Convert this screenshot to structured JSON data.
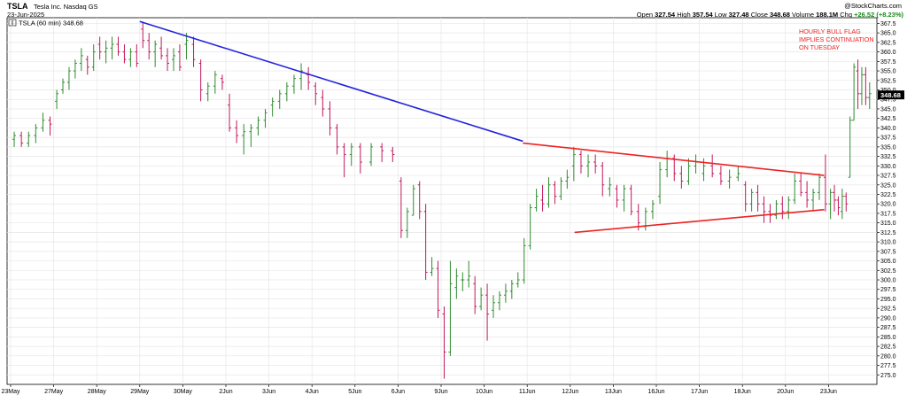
{
  "header": {
    "ticker": "TSLA",
    "company": "Tesla Inc.  Nasdaq GS",
    "date": "23-Jun-2025",
    "credit": "@StockCharts.com",
    "ohlc": {
      "open_label": "Open",
      "open": "327.54",
      "high_label": "High",
      "high": "357.54",
      "low_label": "Low",
      "low": "327.48",
      "close_label": "Close",
      "close": "348.68",
      "volume_label": "Volume",
      "volume": "188.1M",
      "chg_label": "Chg",
      "chg": "+26.52 (+8.23%)"
    }
  },
  "chart_data": {
    "type": "ohlc",
    "legend": "TSLA (60 min) 348.68",
    "last_price_tag": "348.68",
    "ylim": [
      272.5,
      369
    ],
    "yticks": [
      "275.0",
      "277.5",
      "280.0",
      "282.5",
      "285.0",
      "287.5",
      "290.0",
      "292.5",
      "295.0",
      "297.5",
      "300.0",
      "302.5",
      "305.0",
      "307.5",
      "310.0",
      "312.5",
      "315.0",
      "317.5",
      "320.0",
      "322.5",
      "325.0",
      "327.5",
      "330.0",
      "332.5",
      "335.0",
      "337.5",
      "340.0",
      "342.5",
      "345.0",
      "347.5",
      "350.0",
      "352.5",
      "355.0",
      "357.5",
      "360.0",
      "362.5",
      "365.0",
      "367.5"
    ],
    "xticks": [
      "23May",
      "27May",
      "28May",
      "29May",
      "30May",
      "2Jun",
      "3Jun",
      "4Jun",
      "5Jun",
      "6Jun",
      "9Jun",
      "10Jun",
      "11Jun",
      "12Jun",
      "13Jun",
      "16Jun",
      "17Jun",
      "18Jun",
      "20Jun",
      "23Jun"
    ],
    "day_sessions": [
      {
        "day": "23May",
        "bars": [
          [
            337,
            339,
            335,
            338
          ],
          [
            338,
            339,
            335,
            336
          ],
          [
            336,
            339,
            335,
            338
          ],
          [
            338,
            341,
            336,
            340
          ],
          [
            340,
            344,
            339,
            342
          ],
          [
            342,
            343,
            338,
            341
          ]
        ]
      },
      {
        "day": "27May",
        "bars": [
          [
            347,
            350,
            345,
            349
          ],
          [
            350,
            353,
            349,
            352
          ],
          [
            352,
            356,
            350,
            355
          ],
          [
            355,
            358,
            353,
            357
          ],
          [
            357,
            361,
            355,
            359
          ],
          [
            358,
            359,
            354,
            356
          ],
          [
            356,
            362,
            355,
            360
          ]
        ]
      },
      {
        "day": "28May",
        "bars": [
          [
            362,
            364,
            358,
            360
          ],
          [
            360,
            363,
            357,
            361
          ],
          [
            361,
            364,
            358,
            362
          ],
          [
            362,
            364,
            359,
            360
          ],
          [
            360,
            362,
            357,
            358
          ],
          [
            358,
            361,
            356,
            360
          ],
          [
            360,
            362,
            356,
            357
          ]
        ]
      },
      {
        "day": "29May",
        "bars": [
          [
            366,
            368,
            361,
            363
          ],
          [
            363,
            365,
            358,
            360
          ],
          [
            360,
            363,
            356,
            362
          ],
          [
            361,
            364,
            358,
            359
          ],
          [
            359,
            361,
            355,
            357
          ],
          [
            358,
            361,
            355,
            359
          ],
          [
            360,
            362,
            355,
            356
          ]
        ]
      },
      {
        "day": "30May",
        "bars": [
          [
            362,
            365,
            358,
            363
          ],
          [
            362,
            364,
            356,
            358
          ],
          [
            357,
            358,
            347,
            350
          ],
          [
            349,
            352,
            347,
            351
          ],
          [
            351,
            355,
            349,
            354
          ],
          [
            353,
            354,
            350,
            352
          ]
        ]
      },
      {
        "day": "2Jun",
        "bars": [
          [
            346,
            349,
            339,
            340
          ],
          [
            340,
            342,
            336,
            338
          ],
          [
            338,
            341,
            333,
            339
          ],
          [
            339,
            341,
            335,
            340
          ],
          [
            340,
            343,
            338,
            342
          ],
          [
            342,
            345,
            340,
            344
          ]
        ]
      },
      {
        "day": "3Jun",
        "bars": [
          [
            346,
            348,
            343,
            347
          ],
          [
            347,
            350,
            345,
            349
          ],
          [
            349,
            352,
            347,
            351
          ],
          [
            351,
            354,
            349,
            353
          ],
          [
            353,
            357,
            350,
            355
          ],
          [
            354,
            356,
            350,
            352
          ]
        ]
      },
      {
        "day": "4Jun",
        "bars": [
          [
            351,
            352,
            346,
            349
          ],
          [
            348,
            350,
            343,
            345
          ],
          [
            345,
            347,
            338,
            340
          ],
          [
            340,
            341,
            333,
            335
          ],
          [
            335,
            336,
            327,
            333
          ],
          [
            333,
            336,
            330,
            335
          ]
        ]
      },
      {
        "day": "5Jun",
        "bars": [
          [
            335,
            336,
            328,
            331
          ],
          [
            331,
            336,
            330,
            335
          ],
          [
            335,
            336,
            331,
            334
          ],
          [
            334,
            335,
            331,
            333
          ]
        ]
      },
      {
        "day": "6Jun",
        "bars": [
          [
            326,
            327,
            311,
            313
          ],
          [
            313,
            319,
            311,
            318
          ],
          [
            317,
            325,
            317,
            324
          ],
          [
            325,
            326,
            316,
            318
          ],
          [
            318,
            320,
            300,
            302
          ],
          [
            302,
            306,
            301,
            303
          ],
          [
            303,
            305,
            290,
            292
          ]
        ]
      },
      {
        "day": "9Jun",
        "bars": [
          [
            291,
            293,
            274,
            281
          ],
          [
            281,
            305,
            280,
            299
          ],
          [
            298,
            303,
            295,
            301
          ],
          [
            300,
            302,
            297,
            300
          ],
          [
            300,
            305,
            298,
            301
          ],
          [
            299,
            301,
            291,
            293
          ],
          [
            293,
            298,
            292,
            296
          ]
        ]
      },
      {
        "day": "10Jun",
        "bars": [
          [
            296,
            299,
            284,
            291
          ],
          [
            292,
            296,
            290,
            294
          ],
          [
            294,
            297,
            292,
            296
          ],
          [
            296,
            299,
            294,
            297
          ],
          [
            297,
            300,
            295,
            299
          ],
          [
            299,
            302,
            298,
            300
          ],
          [
            300,
            311,
            299,
            309
          ]
        ]
      },
      {
        "day": "11Jun",
        "bars": [
          [
            309,
            320,
            308,
            319
          ],
          [
            319,
            324,
            318,
            322
          ],
          [
            321,
            325,
            318,
            320
          ],
          [
            320,
            327,
            319,
            325
          ],
          [
            325,
            326,
            320,
            322
          ],
          [
            322,
            327,
            321,
            326
          ],
          [
            326,
            329,
            324,
            327
          ]
        ]
      },
      {
        "day": "12Jun",
        "bars": [
          [
            330,
            335,
            326,
            333
          ],
          [
            333,
            334,
            328,
            330
          ],
          [
            330,
            333,
            327,
            331
          ],
          [
            331,
            333,
            328,
            330
          ],
          [
            330,
            331,
            322,
            325
          ],
          [
            324,
            327,
            322,
            325
          ]
        ]
      },
      {
        "day": "13Jun",
        "bars": [
          [
            324,
            325,
            319,
            321
          ],
          [
            321,
            325,
            318,
            324
          ],
          [
            324,
            325,
            317,
            318
          ],
          [
            318,
            320,
            313,
            315
          ],
          [
            314,
            319,
            313,
            318
          ],
          [
            318,
            321,
            316,
            320
          ]
        ]
      },
      {
        "day": "16Jun",
        "bars": [
          [
            322,
            331,
            320,
            329
          ],
          [
            329,
            334,
            327,
            332
          ],
          [
            332,
            333,
            326,
            328
          ],
          [
            328,
            330,
            324,
            326
          ],
          [
            326,
            332,
            325,
            330
          ],
          [
            330,
            333,
            328,
            331
          ]
        ]
      },
      {
        "day": "17Jun",
        "bars": [
          [
            328,
            332,
            326,
            330
          ],
          [
            330,
            333,
            327,
            328
          ],
          [
            328,
            330,
            325,
            326
          ],
          [
            326,
            329,
            324,
            327
          ],
          [
            327,
            330,
            326,
            328
          ]
        ]
      },
      {
        "day": "18Jun",
        "bars": [
          [
            325,
            326,
            318,
            320
          ],
          [
            320,
            324,
            318,
            323
          ],
          [
            323,
            325,
            318,
            320
          ],
          [
            320,
            322,
            315,
            318
          ],
          [
            318,
            320,
            315,
            317
          ],
          [
            317,
            321,
            316,
            320
          ],
          [
            320,
            322,
            316,
            318
          ]
        ]
      },
      {
        "day": "20Jun",
        "bars": [
          [
            318,
            322,
            316,
            321
          ],
          [
            321,
            328,
            320,
            326
          ],
          [
            326,
            328,
            322,
            323
          ],
          [
            323,
            326,
            319,
            321
          ],
          [
            321,
            324,
            318,
            323
          ],
          [
            323,
            328,
            321,
            327
          ],
          [
            327,
            333,
            318,
            320
          ]
        ]
      },
      {
        "day": "23Jun",
        "bars": [
          [
            320,
            324,
            316,
            323
          ],
          [
            323,
            325,
            318,
            321
          ],
          [
            321,
            322,
            317,
            319
          ],
          [
            318,
            324,
            316,
            322
          ],
          [
            322,
            323,
            318,
            320
          ],
          [
            327,
            343,
            327,
            342
          ],
          [
            342,
            357,
            342,
            356
          ],
          [
            355,
            358,
            345,
            349
          ],
          [
            349,
            356,
            346,
            354
          ],
          [
            354,
            356,
            346,
            348
          ],
          [
            348,
            352,
            345,
            349
          ]
        ]
      }
    ],
    "trendlines": [
      {
        "name": "blue-downtrend-line",
        "color": "#2222dd",
        "from": [
          3.0,
          368
        ],
        "to": [
          11.9,
          336.5
        ]
      },
      {
        "name": "red-upper-line",
        "color": "#ee2222",
        "from": [
          11.9,
          336
        ],
        "to": [
          18.9,
          327.5
        ]
      },
      {
        "name": "red-lower-line",
        "color": "#ee2222",
        "from": [
          13.1,
          312.5
        ],
        "to": [
          18.9,
          318.5
        ]
      }
    ],
    "annotation": {
      "lines": [
        "HOURLY BULL FLAG",
        "IMPLIES CONTINUATION",
        "ON TUESDAY"
      ],
      "color": "#ee2222"
    },
    "colors": {
      "up": "#2e8b2e",
      "down": "#c2185b",
      "grid": "#e6e6e6",
      "axis": "#000000"
    }
  }
}
